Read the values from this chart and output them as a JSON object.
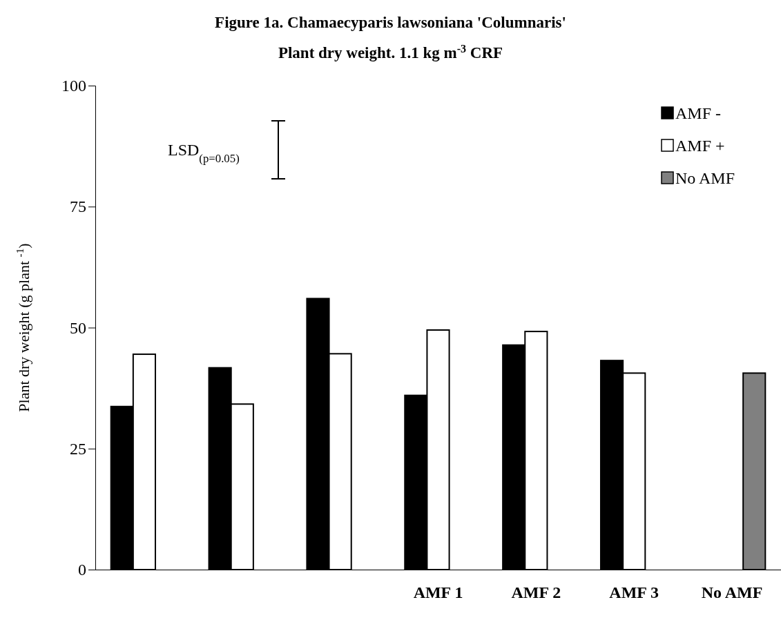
{
  "chart_data": {
    "type": "bar",
    "title": "Figure 1a.  Chamaecyparis lawsoniana 'Columnaris'",
    "subtitle": "Plant dry weight.  1.1 kg m$^{-3}$ CRF",
    "ylabel": "Plant dry weight (g plant $^{-1}$)",
    "categories": [
      null,
      null,
      null,
      "AMF 1",
      "AMF 2",
      "AMF 3",
      "No AMF"
    ],
    "series": [
      {
        "name": "AMF -",
        "color": "#000000",
        "values": [
          33.7,
          41.7,
          56.0,
          36.0,
          46.4,
          43.2,
          null
        ]
      },
      {
        "name": "AMF +",
        "color": "#ffffff",
        "values": [
          44.5,
          34.2,
          44.6,
          49.5,
          49.2,
          40.6,
          null
        ]
      },
      {
        "name": "No AMF",
        "color": "#808080",
        "values": [
          null,
          null,
          null,
          null,
          null,
          null,
          40.6
        ]
      }
    ],
    "ylim": [
      0,
      100
    ],
    "yticks": [
      0,
      25,
      50,
      75,
      100
    ],
    "grid": false,
    "legend": "top right",
    "annotations": [
      "LSD$_{(p=0.05)}$"
    ]
  }
}
